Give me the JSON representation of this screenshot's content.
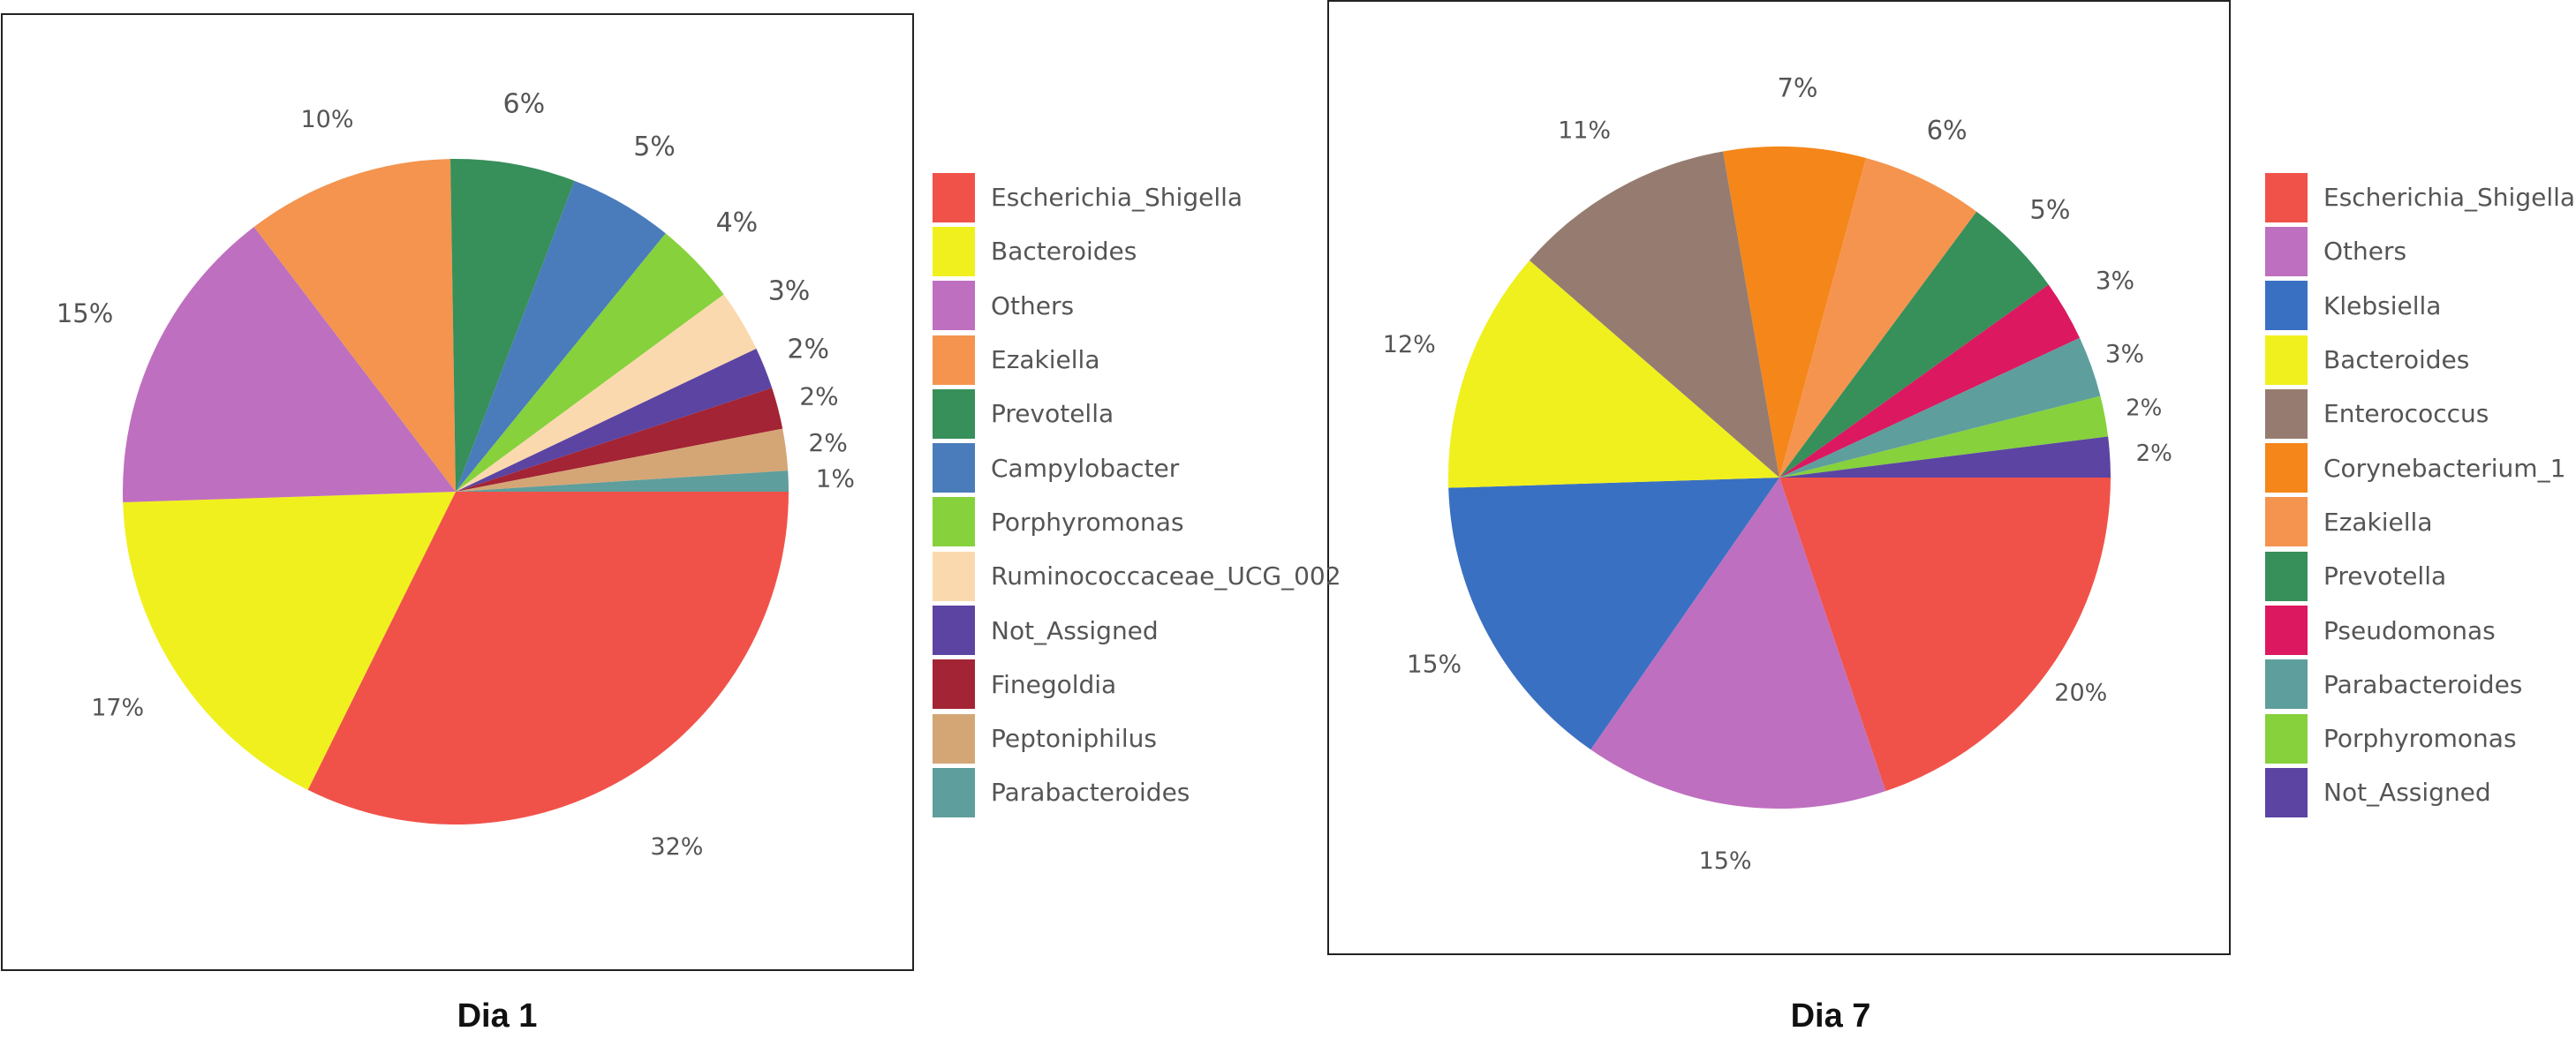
{
  "chart_data": [
    {
      "type": "pie",
      "title": "",
      "caption": "Dia 1",
      "slices": [
        {
          "label": "Escherichia_Shigella",
          "value": 32,
          "text": "32%",
          "color": "#F0524A"
        },
        {
          "label": "Bacteroides",
          "value": 17,
          "text": "17%",
          "color": "#F0F01E"
        },
        {
          "label": "Others",
          "value": 15,
          "text": "15%",
          "color": "#BF6FBF"
        },
        {
          "label": "Ezakiella",
          "value": 10,
          "text": "10%",
          "color": "#F4944F"
        },
        {
          "label": "Prevotella",
          "value": 6,
          "text": "6%",
          "color": "#378F5A"
        },
        {
          "label": "Campylobacter",
          "value": 5,
          "text": "5%",
          "color": "#4A7CBC"
        },
        {
          "label": "Porphyromonas",
          "value": 4,
          "text": "4%",
          "color": "#86D13C"
        },
        {
          "label": "Ruminococcaceae_UCG_002",
          "value": 3,
          "text": "3%",
          "color": "#FBD9AE"
        },
        {
          "label": "Not_Assigned",
          "value": 2,
          "text": "2%",
          "color": "#5C44A2"
        },
        {
          "label": "Finegoldia",
          "value": 2,
          "text": "2%",
          "color": "#A32434"
        },
        {
          "label": "Peptoniphilus",
          "value": 2,
          "text": "2%",
          "color": "#D4A676"
        },
        {
          "label": "Parabacteroides",
          "value": 1,
          "text": "1%",
          "color": "#5E9E9C"
        }
      ]
    },
    {
      "type": "pie",
      "title": "",
      "caption": "Dia 7",
      "slices": [
        {
          "label": "Escherichia_Shigella",
          "value": 20,
          "text": "20%",
          "color": "#F0524A"
        },
        {
          "label": "Others",
          "value": 15,
          "text": "15%",
          "color": "#BF6FBF"
        },
        {
          "label": "Klebsiella",
          "value": 15,
          "text": "15%",
          "color": "#3A70C2"
        },
        {
          "label": "Bacteroides",
          "value": 12,
          "text": "12%",
          "color": "#F0F01E"
        },
        {
          "label": "Enterococcus",
          "value": 11,
          "text": "11%",
          "color": "#967C70"
        },
        {
          "label": "Corynebacterium_1",
          "value": 7,
          "text": "7%",
          "color": "#F5861A"
        },
        {
          "label": "Ezakiella",
          "value": 6,
          "text": "6%",
          "color": "#F4944F"
        },
        {
          "label": "Prevotella",
          "value": 5,
          "text": "5%",
          "color": "#378F5A"
        },
        {
          "label": "Pseudomonas",
          "value": 3,
          "text": "3%",
          "color": "#DB1860"
        },
        {
          "label": "Parabacteroides",
          "value": 3,
          "text": "3%",
          "color": "#5E9E9C"
        },
        {
          "label": "Porphyromonas",
          "value": 2,
          "text": "2%",
          "color": "#86D13C"
        },
        {
          "label": "Not_Assigned",
          "value": 2,
          "text": "2%",
          "color": "#5C44A2"
        }
      ]
    }
  ]
}
